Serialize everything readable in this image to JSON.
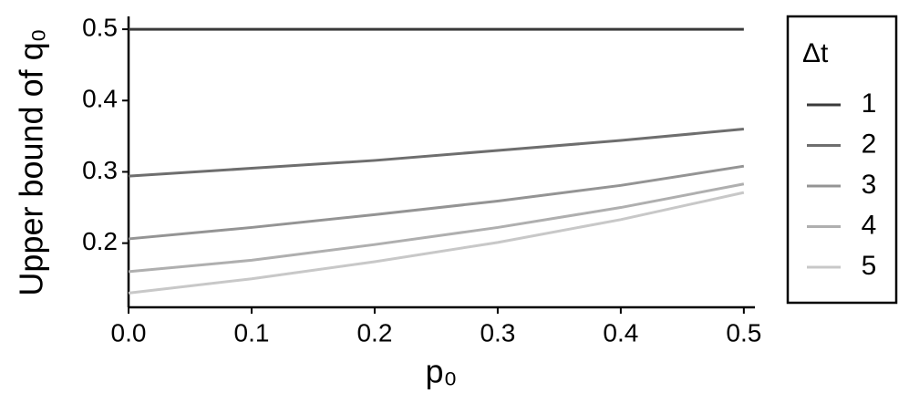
{
  "chart_data": {
    "type": "line",
    "xlabel": "p₀",
    "ylabel": "Upper bound of q₀",
    "x": [
      0,
      0.1,
      0.2,
      0.3,
      0.4,
      0.5
    ],
    "series": [
      {
        "name": "1",
        "color": "#3a3a3a",
        "values": [
          0.5,
          0.5,
          0.5,
          0.5,
          0.5,
          0.5
        ]
      },
      {
        "name": "2",
        "color": "#6e6e6e",
        "values": [
          0.294,
          0.305,
          0.316,
          0.33,
          0.344,
          0.36
        ]
      },
      {
        "name": "3",
        "color": "#949494",
        "values": [
          0.206,
          0.222,
          0.24,
          0.259,
          0.281,
          0.308
        ]
      },
      {
        "name": "4",
        "color": "#afafaf",
        "values": [
          0.16,
          0.176,
          0.198,
          0.222,
          0.25,
          0.283
        ]
      },
      {
        "name": "5",
        "color": "#c8c8c8",
        "values": [
          0.13,
          0.15,
          0.174,
          0.201,
          0.233,
          0.271
        ]
      }
    ],
    "legend_title": "Δt",
    "legend": "right",
    "xlim": [
      0,
      0.509
    ],
    "ylim": [
      0.11,
      0.518
    ],
    "xticks": [
      {
        "value": 0,
        "label": "0.0"
      },
      0.1,
      0.2,
      0.3,
      0.4,
      0.5
    ],
    "yticks": [
      0.2,
      0.3,
      0.4,
      0.5
    ]
  }
}
